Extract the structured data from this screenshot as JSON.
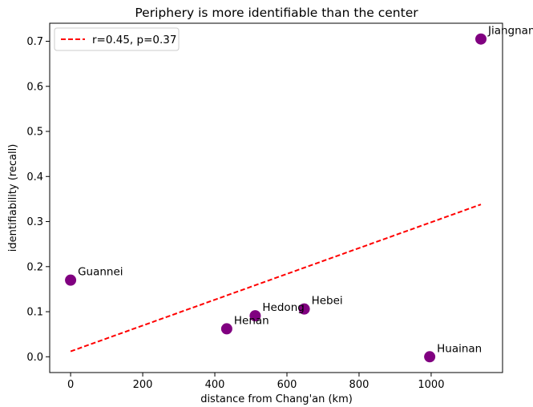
{
  "chart_data": {
    "type": "scatter",
    "title": "Periphery is more identifiable than the center",
    "xlabel": "distance from Chang'an (km)",
    "ylabel": "identifiability (recall)",
    "xlim": [
      -58,
      1198
    ],
    "ylim": [
      -0.035,
      0.74
    ],
    "x_ticks": [
      0,
      200,
      400,
      600,
      800,
      1000
    ],
    "y_ticks": [
      0.0,
      0.1,
      0.2,
      0.3,
      0.4,
      0.5,
      0.6,
      0.7
    ],
    "x_tick_labels": [
      "0",
      "200",
      "400",
      "600",
      "800",
      "1000"
    ],
    "y_tick_labels": [
      "0.0",
      "0.1",
      "0.2",
      "0.3",
      "0.4",
      "0.5",
      "0.6",
      "0.7"
    ],
    "grid": false,
    "legend_position": "top-left",
    "marker_color": "#800080",
    "points": [
      {
        "label": "Guannei",
        "x": 0,
        "y": 0.17
      },
      {
        "label": "Henan",
        "x": 433,
        "y": 0.062
      },
      {
        "label": "Hedong",
        "x": 512,
        "y": 0.091
      },
      {
        "label": "Hebei",
        "x": 648,
        "y": 0.106
      },
      {
        "label": "Huainan",
        "x": 996,
        "y": 0.0
      },
      {
        "label": "Jiangnan",
        "x": 1138,
        "y": 0.705
      }
    ],
    "fit_line": {
      "label": "r=0.45, p=0.37",
      "color": "#ff0000",
      "style": "dashed",
      "x": [
        0,
        1138
      ],
      "y": [
        0.012,
        0.338
      ]
    }
  }
}
